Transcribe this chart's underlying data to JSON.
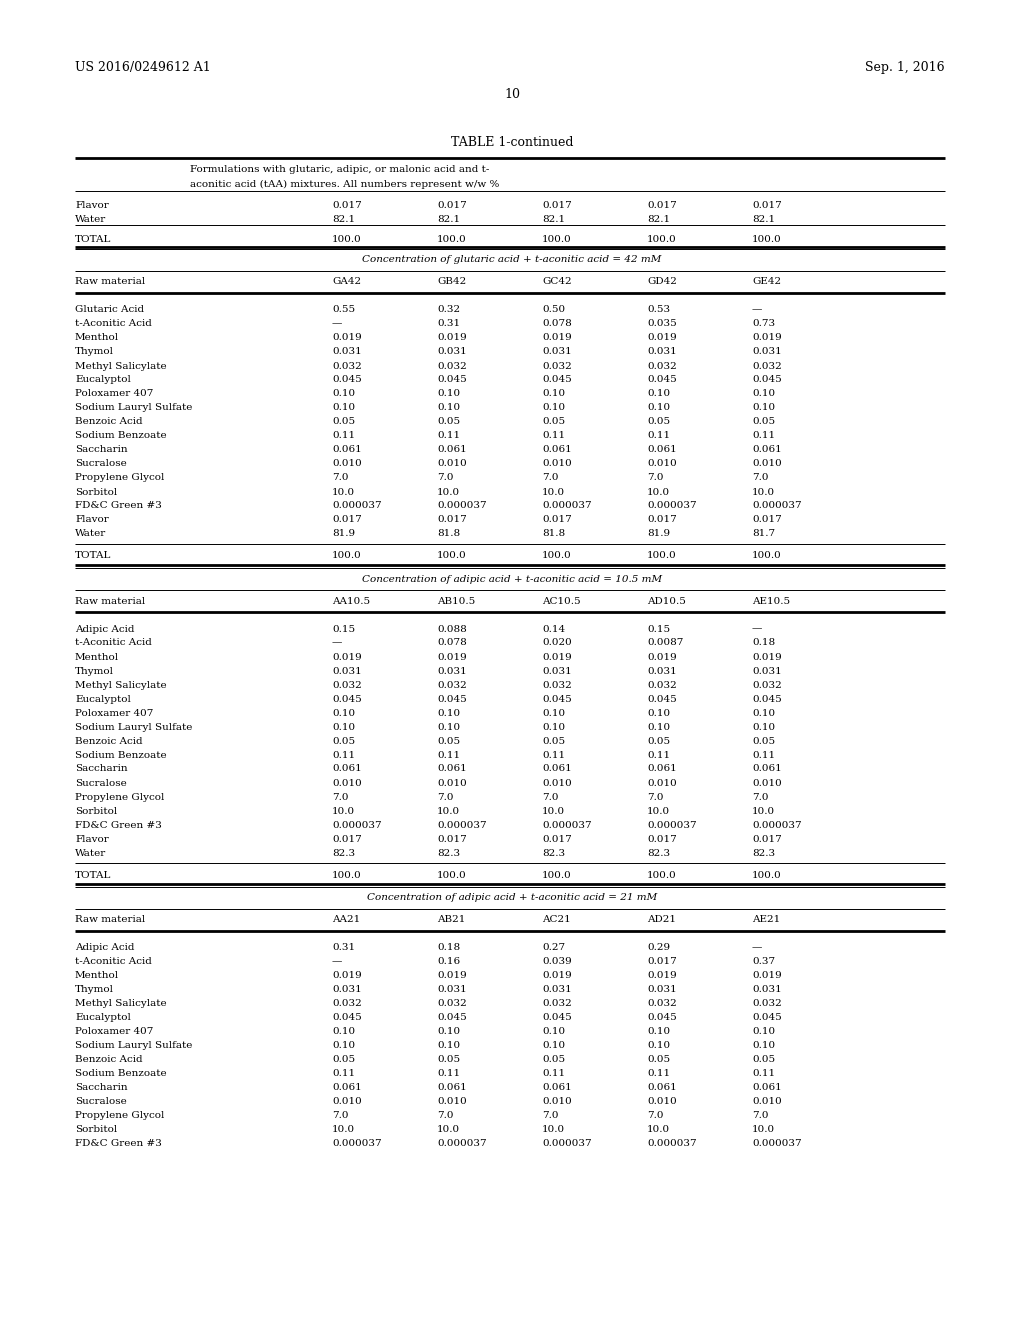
{
  "header_left": "US 2016/0249612 A1",
  "header_right": "Sep. 1, 2016",
  "page_number": "10",
  "table_title": "TABLE 1-continued",
  "table_subtitle_line1": "Formulations with glutaric, adipic, or malonic acid and t-",
  "table_subtitle_line2": "aconitic acid (tAA) mixtures. All numbers represent w/w %",
  "section0_rows": [
    [
      "Flavor",
      "0.017",
      "0.017",
      "0.017",
      "0.017",
      "0.017"
    ],
    [
      "Water",
      "82.1",
      "82.1",
      "82.1",
      "82.1",
      "82.1"
    ],
    [
      "TOTAL",
      "100.0",
      "100.0",
      "100.0",
      "100.0",
      "100.0"
    ]
  ],
  "section1_header": "Concentration of glutaric acid + t-aconitic acid = 42 mM",
  "section1_col_header": [
    "Raw material",
    "GA42",
    "GB42",
    "GC42",
    "GD42",
    "GE42"
  ],
  "section1_rows": [
    [
      "Glutaric Acid",
      "0.55",
      "0.32",
      "0.50",
      "0.53",
      "—"
    ],
    [
      "t-Aconitic Acid",
      "—",
      "0.31",
      "0.078",
      "0.035",
      "0.73"
    ],
    [
      "Menthol",
      "0.019",
      "0.019",
      "0.019",
      "0.019",
      "0.019"
    ],
    [
      "Thymol",
      "0.031",
      "0.031",
      "0.031",
      "0.031",
      "0.031"
    ],
    [
      "Methyl Salicylate",
      "0.032",
      "0.032",
      "0.032",
      "0.032",
      "0.032"
    ],
    [
      "Eucalyptol",
      "0.045",
      "0.045",
      "0.045",
      "0.045",
      "0.045"
    ],
    [
      "Poloxamer 407",
      "0.10",
      "0.10",
      "0.10",
      "0.10",
      "0.10"
    ],
    [
      "Sodium Lauryl Sulfate",
      "0.10",
      "0.10",
      "0.10",
      "0.10",
      "0.10"
    ],
    [
      "Benzoic Acid",
      "0.05",
      "0.05",
      "0.05",
      "0.05",
      "0.05"
    ],
    [
      "Sodium Benzoate",
      "0.11",
      "0.11",
      "0.11",
      "0.11",
      "0.11"
    ],
    [
      "Saccharin",
      "0.061",
      "0.061",
      "0.061",
      "0.061",
      "0.061"
    ],
    [
      "Sucralose",
      "0.010",
      "0.010",
      "0.010",
      "0.010",
      "0.010"
    ],
    [
      "Propylene Glycol",
      "7.0",
      "7.0",
      "7.0",
      "7.0",
      "7.0"
    ],
    [
      "Sorbitol",
      "10.0",
      "10.0",
      "10.0",
      "10.0",
      "10.0"
    ],
    [
      "FD&C Green #3",
      "0.000037",
      "0.000037",
      "0.000037",
      "0.000037",
      "0.000037"
    ],
    [
      "Flavor",
      "0.017",
      "0.017",
      "0.017",
      "0.017",
      "0.017"
    ],
    [
      "Water",
      "81.9",
      "81.8",
      "81.8",
      "81.9",
      "81.7"
    ],
    [
      "TOTAL",
      "100.0",
      "100.0",
      "100.0",
      "100.0",
      "100.0"
    ]
  ],
  "section2_header": "Concentration of adipic acid + t-aconitic acid = 10.5 mM",
  "section2_col_header": [
    "Raw material",
    "AA10.5",
    "AB10.5",
    "AC10.5",
    "AD10.5",
    "AE10.5"
  ],
  "section2_rows": [
    [
      "Adipic Acid",
      "0.15",
      "0.088",
      "0.14",
      "0.15",
      "—"
    ],
    [
      "t-Aconitic Acid",
      "—",
      "0.078",
      "0.020",
      "0.0087",
      "0.18"
    ],
    [
      "Menthol",
      "0.019",
      "0.019",
      "0.019",
      "0.019",
      "0.019"
    ],
    [
      "Thymol",
      "0.031",
      "0.031",
      "0.031",
      "0.031",
      "0.031"
    ],
    [
      "Methyl Salicylate",
      "0.032",
      "0.032",
      "0.032",
      "0.032",
      "0.032"
    ],
    [
      "Eucalyptol",
      "0.045",
      "0.045",
      "0.045",
      "0.045",
      "0.045"
    ],
    [
      "Poloxamer 407",
      "0.10",
      "0.10",
      "0.10",
      "0.10",
      "0.10"
    ],
    [
      "Sodium Lauryl Sulfate",
      "0.10",
      "0.10",
      "0.10",
      "0.10",
      "0.10"
    ],
    [
      "Benzoic Acid",
      "0.05",
      "0.05",
      "0.05",
      "0.05",
      "0.05"
    ],
    [
      "Sodium Benzoate",
      "0.11",
      "0.11",
      "0.11",
      "0.11",
      "0.11"
    ],
    [
      "Saccharin",
      "0.061",
      "0.061",
      "0.061",
      "0.061",
      "0.061"
    ],
    [
      "Sucralose",
      "0.010",
      "0.010",
      "0.010",
      "0.010",
      "0.010"
    ],
    [
      "Propylene Glycol",
      "7.0",
      "7.0",
      "7.0",
      "7.0",
      "7.0"
    ],
    [
      "Sorbitol",
      "10.0",
      "10.0",
      "10.0",
      "10.0",
      "10.0"
    ],
    [
      "FD&C Green #3",
      "0.000037",
      "0.000037",
      "0.000037",
      "0.000037",
      "0.000037"
    ],
    [
      "Flavor",
      "0.017",
      "0.017",
      "0.017",
      "0.017",
      "0.017"
    ],
    [
      "Water",
      "82.3",
      "82.3",
      "82.3",
      "82.3",
      "82.3"
    ],
    [
      "TOTAL",
      "100.0",
      "100.0",
      "100.0",
      "100.0",
      "100.0"
    ]
  ],
  "section3_header": "Concentration of adipic acid + t-aconitic acid = 21 mM",
  "section3_col_header": [
    "Raw material",
    "AA21",
    "AB21",
    "AC21",
    "AD21",
    "AE21"
  ],
  "section3_rows": [
    [
      "Adipic Acid",
      "0.31",
      "0.18",
      "0.27",
      "0.29",
      "—"
    ],
    [
      "t-Aconitic Acid",
      "—",
      "0.16",
      "0.039",
      "0.017",
      "0.37"
    ],
    [
      "Menthol",
      "0.019",
      "0.019",
      "0.019",
      "0.019",
      "0.019"
    ],
    [
      "Thymol",
      "0.031",
      "0.031",
      "0.031",
      "0.031",
      "0.031"
    ],
    [
      "Methyl Salicylate",
      "0.032",
      "0.032",
      "0.032",
      "0.032",
      "0.032"
    ],
    [
      "Eucalyptol",
      "0.045",
      "0.045",
      "0.045",
      "0.045",
      "0.045"
    ],
    [
      "Poloxamer 407",
      "0.10",
      "0.10",
      "0.10",
      "0.10",
      "0.10"
    ],
    [
      "Sodium Lauryl Sulfate",
      "0.10",
      "0.10",
      "0.10",
      "0.10",
      "0.10"
    ],
    [
      "Benzoic Acid",
      "0.05",
      "0.05",
      "0.05",
      "0.05",
      "0.05"
    ],
    [
      "Sodium Benzoate",
      "0.11",
      "0.11",
      "0.11",
      "0.11",
      "0.11"
    ],
    [
      "Saccharin",
      "0.061",
      "0.061",
      "0.061",
      "0.061",
      "0.061"
    ],
    [
      "Sucralose",
      "0.010",
      "0.010",
      "0.010",
      "0.010",
      "0.010"
    ],
    [
      "Propylene Glycol",
      "7.0",
      "7.0",
      "7.0",
      "7.0",
      "7.0"
    ],
    [
      "Sorbitol",
      "10.0",
      "10.0",
      "10.0",
      "10.0",
      "10.0"
    ],
    [
      "FD&C Green #3",
      "0.000037",
      "0.000037",
      "0.000037",
      "0.000037",
      "0.000037"
    ]
  ],
  "bg_color": "#ffffff",
  "text_color": "#000000"
}
